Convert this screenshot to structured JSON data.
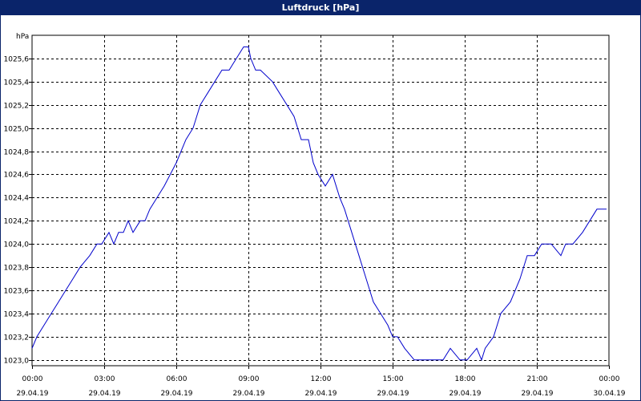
{
  "window": {
    "title": "Luftdruck [hPa]"
  },
  "chart_data": {
    "type": "line",
    "title": "Luftdruck [hPa]",
    "ylabel": "hPa",
    "xlabel": "",
    "ylim": [
      1022.95,
      1025.8
    ],
    "xlim": [
      0,
      24
    ],
    "grid": true,
    "line_color": "#0000cc",
    "yticks": [
      {
        "value": 1023.0,
        "label": "1023,0"
      },
      {
        "value": 1023.2,
        "label": "1023,2"
      },
      {
        "value": 1023.4,
        "label": "1023,4"
      },
      {
        "value": 1023.6,
        "label": "1023,6"
      },
      {
        "value": 1023.8,
        "label": "1023,8"
      },
      {
        "value": 1024.0,
        "label": "1024,0"
      },
      {
        "value": 1024.2,
        "label": "1024,2"
      },
      {
        "value": 1024.4,
        "label": "1024,4"
      },
      {
        "value": 1024.6,
        "label": "1024,6"
      },
      {
        "value": 1024.8,
        "label": "1024,8"
      },
      {
        "value": 1025.0,
        "label": "1025,0"
      },
      {
        "value": 1025.2,
        "label": "1025,2"
      },
      {
        "value": 1025.4,
        "label": "1025,4"
      },
      {
        "value": 1025.6,
        "label": "1025,6"
      }
    ],
    "xticks": [
      {
        "value": 0,
        "time": "00:00",
        "date": "29.04.19"
      },
      {
        "value": 3,
        "time": "03:00",
        "date": "29.04.19"
      },
      {
        "value": 6,
        "time": "06:00",
        "date": "29.04.19"
      },
      {
        "value": 9,
        "time": "09:00",
        "date": "29.04.19"
      },
      {
        "value": 12,
        "time": "12:00",
        "date": "29.04.19"
      },
      {
        "value": 15,
        "time": "15:00",
        "date": "29.04.19"
      },
      {
        "value": 18,
        "time": "18:00",
        "date": "29.04.19"
      },
      {
        "value": 21,
        "time": "21:00",
        "date": "29.04.19"
      },
      {
        "value": 24,
        "time": "00:00",
        "date": "30.04.19"
      }
    ],
    "series": [
      {
        "x": [
          0,
          0.2,
          0.5,
          0.8,
          1.1,
          1.4,
          1.7,
          2.0,
          2.4,
          2.7,
          2.9,
          3.2,
          3.4,
          3.6,
          3.8,
          4.0,
          4.2,
          4.5,
          4.7,
          4.9,
          5.2,
          5.5,
          6.0,
          6.4,
          6.7,
          7.0,
          7.3,
          7.6,
          7.9,
          8.2,
          8.5,
          8.8,
          9.0,
          9.1,
          9.3,
          9.5,
          10.0,
          10.3,
          10.6,
          10.9,
          11.2,
          11.5,
          11.7,
          11.9,
          12.2,
          12.5,
          12.8,
          13.0,
          13.3,
          13.6,
          13.9,
          14.2,
          14.5,
          14.8,
          15.0,
          15.2,
          15.5,
          15.9,
          16.4,
          16.8,
          17.1,
          17.4,
          17.8,
          17.95,
          18.1,
          18.5,
          18.7,
          18.85,
          19.2,
          19.5,
          19.9,
          20.3,
          20.6,
          20.9,
          21.2,
          21.6,
          22.0,
          22.2,
          22.5,
          22.9,
          23.2,
          23.5,
          23.9
        ],
        "y": [
          1023.1,
          1023.2,
          1023.3,
          1023.4,
          1023.5,
          1023.6,
          1023.7,
          1023.8,
          1023.9,
          1024.0,
          1024.0,
          1024.1,
          1024.0,
          1024.1,
          1024.1,
          1024.2,
          1024.1,
          1024.2,
          1024.2,
          1024.3,
          1024.4,
          1024.5,
          1024.7,
          1024.9,
          1025.0,
          1025.2,
          1025.3,
          1025.4,
          1025.5,
          1025.5,
          1025.6,
          1025.7,
          1025.7,
          1025.6,
          1025.5,
          1025.5,
          1025.4,
          1025.3,
          1025.2,
          1025.1,
          1024.9,
          1024.9,
          1024.7,
          1024.6,
          1024.5,
          1024.6,
          1024.4,
          1024.3,
          1024.1,
          1023.9,
          1023.7,
          1023.5,
          1023.4,
          1023.3,
          1023.2,
          1023.2,
          1023.1,
          1023.0,
          1023.0,
          1023.0,
          1023.0,
          1023.1,
          1023.0,
          1023.0,
          1023.0,
          1023.1,
          1023.0,
          1023.1,
          1023.2,
          1023.4,
          1023.5,
          1023.7,
          1023.9,
          1023.9,
          1024.0,
          1024.0,
          1023.9,
          1024.0,
          1024.0,
          1024.1,
          1024.2,
          1024.3,
          1024.3
        ]
      }
    ]
  }
}
